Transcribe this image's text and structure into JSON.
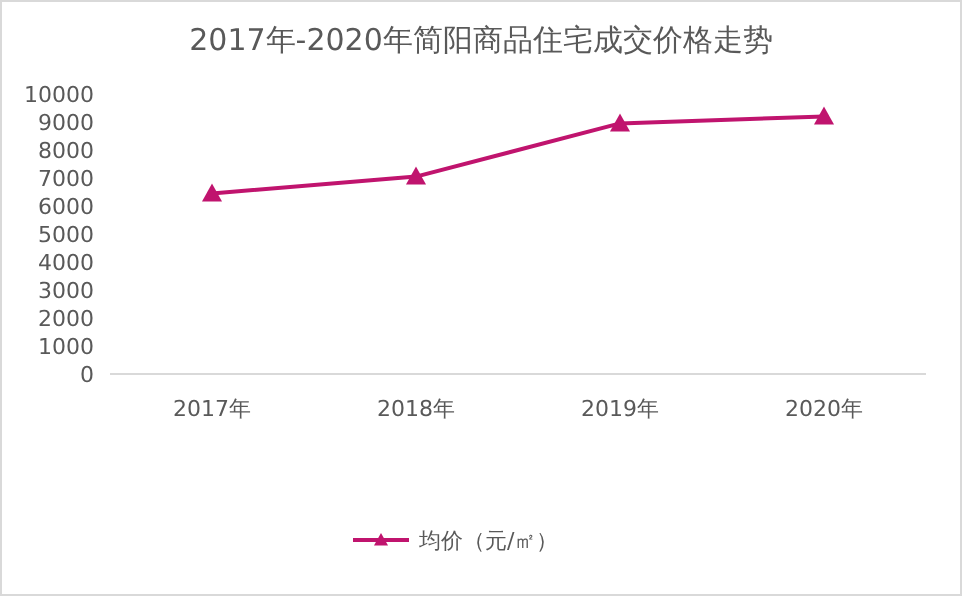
{
  "chart_data": {
    "type": "line",
    "title": "2017年-2020年简阳商品住宅成交价格走势",
    "categories": [
      "2017年",
      "2018年",
      "2019年",
      "2020年"
    ],
    "series": [
      {
        "name": "均价（元/㎡）",
        "color": "#c0146e",
        "values": [
          6450,
          7050,
          8950,
          9200
        ]
      }
    ],
    "ylim": [
      0,
      10000
    ],
    "yticks": [
      0,
      1000,
      2000,
      3000,
      4000,
      5000,
      6000,
      7000,
      8000,
      9000,
      10000
    ],
    "grid": false,
    "legend": "bottom",
    "marker": "triangle",
    "line_style": "solid"
  }
}
